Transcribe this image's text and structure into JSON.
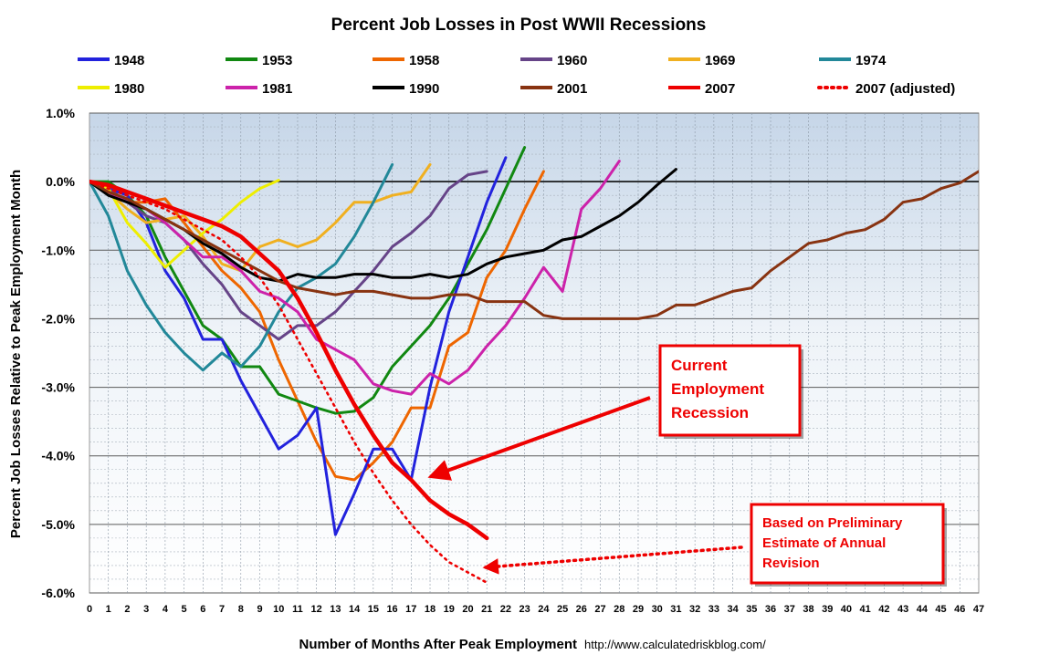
{
  "chart_data": {
    "type": "line",
    "title": "Percent Job Losses in Post WWII Recessions",
    "xlabel": "Number of Months After Peak Employment",
    "ylabel": "Percent Job Losses Relative to Peak Employment Month",
    "source": "http://www.calculatedriskblog.com/",
    "xlim": [
      0,
      47
    ],
    "ylim": [
      -6.0,
      1.0
    ],
    "x_ticks": [
      0,
      1,
      2,
      3,
      4,
      5,
      6,
      7,
      8,
      9,
      10,
      11,
      12,
      13,
      14,
      15,
      16,
      17,
      18,
      19,
      20,
      21,
      22,
      23,
      24,
      25,
      26,
      27,
      28,
      29,
      30,
      31,
      32,
      33,
      34,
      35,
      36,
      37,
      38,
      39,
      40,
      41,
      42,
      43,
      44,
      45,
      46,
      47
    ],
    "y_ticks": [
      {
        "value": 1.0,
        "label": "1.0%"
      },
      {
        "value": 0.0,
        "label": "0.0%"
      },
      {
        "value": -1.0,
        "label": "-1.0%"
      },
      {
        "value": -2.0,
        "label": "-2.0%"
      },
      {
        "value": -3.0,
        "label": "-3.0%"
      },
      {
        "value": -4.0,
        "label": "-4.0%"
      },
      {
        "value": -5.0,
        "label": "-5.0%"
      },
      {
        "value": -6.0,
        "label": "-6.0%"
      }
    ],
    "grid": true,
    "legend_position": "top",
    "series": [
      {
        "name": "1948",
        "color": "#2222dd",
        "dashed": false,
        "values": [
          0,
          -0.1,
          -0.2,
          -0.6,
          -1.3,
          -1.7,
          -2.3,
          -2.3,
          -2.9,
          -3.4,
          -3.9,
          -3.7,
          -3.3,
          -5.15,
          -4.55,
          -3.9,
          -3.9,
          -4.35,
          -3.0,
          -1.9,
          -1.1,
          -0.3,
          0.35
        ]
      },
      {
        "name": "1953",
        "color": "#118811",
        "dashed": false,
        "values": [
          0,
          0,
          -0.2,
          -0.5,
          -1.1,
          -1.6,
          -2.1,
          -2.3,
          -2.7,
          -2.7,
          -3.1,
          -3.2,
          -3.3,
          -3.38,
          -3.35,
          -3.15,
          -2.7,
          -2.4,
          -2.1,
          -1.7,
          -1.2,
          -0.7,
          -0.1,
          0.5
        ]
      },
      {
        "name": "1958",
        "color": "#ee6600",
        "dashed": false,
        "values": [
          0,
          -0.1,
          -0.3,
          -0.3,
          -0.25,
          -0.6,
          -0.95,
          -1.3,
          -1.55,
          -1.9,
          -2.6,
          -3.2,
          -3.8,
          -4.3,
          -4.35,
          -4.1,
          -3.8,
          -3.3,
          -3.3,
          -2.4,
          -2.2,
          -1.4,
          -1.0,
          -0.4,
          0.15
        ]
      },
      {
        "name": "1960",
        "color": "#664488",
        "dashed": false,
        "values": [
          0,
          -0.1,
          -0.3,
          -0.5,
          -0.6,
          -0.85,
          -1.2,
          -1.5,
          -1.9,
          -2.1,
          -2.3,
          -2.1,
          -2.1,
          -1.9,
          -1.6,
          -1.3,
          -0.95,
          -0.75,
          -0.5,
          -0.1,
          0.1,
          0.15
        ]
      },
      {
        "name": "1969",
        "color": "#f0b020",
        "dashed": false,
        "values": [
          0,
          -0.15,
          -0.4,
          -0.6,
          -0.55,
          -0.5,
          -0.8,
          -1.2,
          -1.3,
          -0.95,
          -0.85,
          -0.95,
          -0.85,
          -0.6,
          -0.3,
          -0.3,
          -0.2,
          -0.15,
          0.25
        ]
      },
      {
        "name": "1974",
        "color": "#228899",
        "dashed": false,
        "values": [
          0,
          -0.5,
          -1.3,
          -1.8,
          -2.2,
          -2.5,
          -2.75,
          -2.5,
          -2.7,
          -2.4,
          -1.9,
          -1.55,
          -1.4,
          -1.2,
          -0.8,
          -0.3,
          0.25
        ]
      },
      {
        "name": "1980",
        "color": "#eeee00",
        "dashed": false,
        "values": [
          0,
          -0.1,
          -0.6,
          -0.9,
          -1.25,
          -1.0,
          -0.75,
          -0.55,
          -0.3,
          -0.1,
          0.02
        ]
      },
      {
        "name": "1981",
        "color": "#cc22aa",
        "dashed": false,
        "values": [
          0,
          -0.15,
          -0.3,
          -0.4,
          -0.6,
          -0.85,
          -1.1,
          -1.1,
          -1.3,
          -1.6,
          -1.7,
          -1.9,
          -2.3,
          -2.45,
          -2.6,
          -2.95,
          -3.05,
          -3.1,
          -2.8,
          -2.95,
          -2.75,
          -2.4,
          -2.1,
          -1.7,
          -1.25,
          -1.6,
          -0.4,
          -0.1,
          0.3
        ]
      },
      {
        "name": "1990",
        "color": "#000000",
        "dashed": false,
        "values": [
          0,
          -0.2,
          -0.3,
          -0.4,
          -0.55,
          -0.7,
          -0.9,
          -1.05,
          -1.25,
          -1.4,
          -1.45,
          -1.35,
          -1.4,
          -1.4,
          -1.35,
          -1.35,
          -1.4,
          -1.4,
          -1.35,
          -1.4,
          -1.35,
          -1.2,
          -1.1,
          -1.05,
          -1.0,
          -0.85,
          -0.8,
          -0.65,
          -0.5,
          -0.3,
          -0.05,
          0.18
        ]
      },
      {
        "name": "2001",
        "color": "#883311",
        "dashed": false,
        "values": [
          0,
          -0.15,
          -0.25,
          -0.4,
          -0.55,
          -0.7,
          -0.85,
          -1.0,
          -1.15,
          -1.3,
          -1.45,
          -1.55,
          -1.6,
          -1.65,
          -1.6,
          -1.6,
          -1.65,
          -1.7,
          -1.7,
          -1.65,
          -1.65,
          -1.75,
          -1.75,
          -1.75,
          -1.95,
          -2.0,
          -2.0,
          -2.0,
          -2.0,
          -2.0,
          -1.95,
          -1.8,
          -1.8,
          -1.7,
          -1.6,
          -1.55,
          -1.3,
          -1.1,
          -0.9,
          -0.85,
          -0.75,
          -0.7,
          -0.55,
          -0.3,
          -0.25,
          -0.1,
          -0.02,
          0.15
        ]
      },
      {
        "name": "2007",
        "color": "#ee0000",
        "dashed": false,
        "values": [
          0,
          -0.05,
          -0.15,
          -0.25,
          -0.35,
          -0.45,
          -0.55,
          -0.65,
          -0.8,
          -1.05,
          -1.3,
          -1.7,
          -2.2,
          -2.75,
          -3.25,
          -3.7,
          -4.1,
          -4.35,
          -4.65,
          -4.85,
          -5.0,
          -5.2
        ]
      },
      {
        "name": "2007 (adjusted)",
        "color": "#ee0000",
        "dashed": true,
        "values": [
          0,
          -0.1,
          -0.2,
          -0.3,
          -0.4,
          -0.55,
          -0.7,
          -0.85,
          -1.1,
          -1.4,
          -1.8,
          -2.3,
          -2.8,
          -3.3,
          -3.8,
          -4.25,
          -4.65,
          -5.0,
          -5.3,
          -5.55,
          -5.7,
          -5.85
        ]
      }
    ],
    "annotations": [
      {
        "text_lines": [
          "Current",
          "Employment",
          "Recession"
        ]
      },
      {
        "text_lines": [
          "Based on Preliminary",
          "Estimate of  Annual",
          "Revision"
        ]
      }
    ]
  }
}
